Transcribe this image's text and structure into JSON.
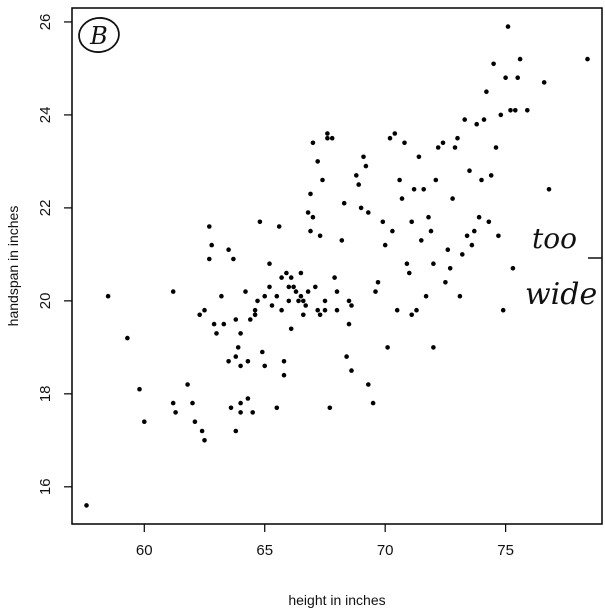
{
  "chart_data": {
    "type": "scatter",
    "title": "",
    "xlabel": "height in inches",
    "ylabel": "handspan in inches",
    "xlim": [
      57,
      79
    ],
    "ylim": [
      15.2,
      26.3
    ],
    "xticks": [
      "60",
      "65",
      "70",
      "75"
    ],
    "yticks": [
      "16",
      "18",
      "20",
      "22",
      "24",
      "26"
    ],
    "grid": false,
    "annotations": {
      "panel_letter": "B",
      "note_line1": "too",
      "note_line2": "wide"
    },
    "points": [
      [
        57.6,
        15.6
      ],
      [
        58.5,
        20.1
      ],
      [
        59.3,
        19.2
      ],
      [
        59.8,
        18.1
      ],
      [
        60.0,
        17.4
      ],
      [
        61.2,
        20.2
      ],
      [
        61.2,
        17.8
      ],
      [
        61.3,
        17.6
      ],
      [
        61.8,
        18.2
      ],
      [
        62.0,
        17.8
      ],
      [
        62.1,
        17.4
      ],
      [
        62.3,
        19.7
      ],
      [
        62.4,
        17.2
      ],
      [
        62.5,
        19.8
      ],
      [
        62.5,
        17.0
      ],
      [
        62.7,
        20.9
      ],
      [
        62.7,
        21.6
      ],
      [
        62.8,
        21.2
      ],
      [
        62.9,
        19.5
      ],
      [
        63.0,
        19.3
      ],
      [
        63.2,
        20.1
      ],
      [
        63.3,
        19.5
      ],
      [
        63.5,
        21.1
      ],
      [
        63.5,
        18.7
      ],
      [
        63.6,
        17.7
      ],
      [
        63.7,
        20.9
      ],
      [
        63.8,
        19.6
      ],
      [
        63.8,
        18.8
      ],
      [
        63.9,
        19.0
      ],
      [
        63.8,
        17.2
      ],
      [
        64.0,
        19.3
      ],
      [
        64.0,
        18.6
      ],
      [
        64.0,
        17.8
      ],
      [
        64.0,
        17.6
      ],
      [
        64.2,
        20.2
      ],
      [
        64.3,
        17.9
      ],
      [
        64.3,
        18.7
      ],
      [
        64.4,
        19.6
      ],
      [
        64.5,
        17.6
      ],
      [
        64.6,
        19.7
      ],
      [
        64.6,
        19.8
      ],
      [
        64.7,
        20.0
      ],
      [
        64.8,
        21.7
      ],
      [
        64.9,
        18.9
      ],
      [
        65.0,
        18.6
      ],
      [
        65.0,
        20.1
      ],
      [
        65.2,
        20.8
      ],
      [
        65.2,
        20.3
      ],
      [
        65.3,
        19.9
      ],
      [
        65.5,
        20.1
      ],
      [
        65.5,
        17.7
      ],
      [
        65.6,
        21.6
      ],
      [
        65.7,
        20.5
      ],
      [
        65.7,
        19.8
      ],
      [
        65.8,
        18.7
      ],
      [
        65.8,
        18.4
      ],
      [
        65.9,
        20.6
      ],
      [
        66.0,
        20.3
      ],
      [
        66.0,
        20.0
      ],
      [
        66.1,
        20.5
      ],
      [
        66.1,
        19.4
      ],
      [
        66.2,
        20.3
      ],
      [
        66.3,
        20.2
      ],
      [
        66.4,
        20.0
      ],
      [
        66.5,
        20.1
      ],
      [
        66.5,
        20.6
      ],
      [
        66.6,
        19.7
      ],
      [
        66.6,
        20.0
      ],
      [
        66.7,
        19.9
      ],
      [
        66.8,
        20.2
      ],
      [
        66.8,
        21.9
      ],
      [
        66.9,
        22.3
      ],
      [
        66.9,
        21.5
      ],
      [
        67.0,
        23.4
      ],
      [
        67.0,
        21.8
      ],
      [
        67.1,
        20.3
      ],
      [
        67.2,
        23.0
      ],
      [
        67.2,
        19.8
      ],
      [
        67.3,
        19.7
      ],
      [
        67.3,
        21.4
      ],
      [
        67.4,
        22.6
      ],
      [
        67.5,
        20.0
      ],
      [
        67.5,
        19.8
      ],
      [
        67.6,
        23.6
      ],
      [
        67.6,
        23.5
      ],
      [
        67.7,
        17.7
      ],
      [
        67.8,
        23.5
      ],
      [
        67.9,
        20.5
      ],
      [
        68.0,
        20.2
      ],
      [
        68.0,
        19.8
      ],
      [
        68.2,
        21.3
      ],
      [
        68.3,
        22.1
      ],
      [
        68.4,
        18.8
      ],
      [
        68.5,
        19.5
      ],
      [
        68.5,
        20.0
      ],
      [
        68.6,
        18.5
      ],
      [
        68.6,
        19.9
      ],
      [
        68.8,
        22.7
      ],
      [
        68.9,
        22.5
      ],
      [
        69.0,
        22.0
      ],
      [
        69.1,
        23.1
      ],
      [
        69.2,
        22.9
      ],
      [
        69.3,
        21.9
      ],
      [
        69.3,
        18.2
      ],
      [
        69.5,
        17.8
      ],
      [
        69.6,
        20.2
      ],
      [
        69.7,
        20.4
      ],
      [
        69.9,
        21.7
      ],
      [
        70.0,
        21.2
      ],
      [
        70.1,
        19.0
      ],
      [
        70.2,
        23.5
      ],
      [
        70.3,
        21.5
      ],
      [
        70.4,
        23.6
      ],
      [
        70.5,
        19.8
      ],
      [
        70.6,
        22.6
      ],
      [
        70.7,
        22.2
      ],
      [
        70.8,
        23.4
      ],
      [
        70.9,
        20.8
      ],
      [
        71.0,
        20.6
      ],
      [
        71.1,
        21.7
      ],
      [
        71.1,
        19.7
      ],
      [
        71.2,
        22.4
      ],
      [
        71.3,
        19.8
      ],
      [
        71.4,
        23.1
      ],
      [
        71.5,
        21.3
      ],
      [
        71.6,
        22.4
      ],
      [
        71.7,
        20.1
      ],
      [
        71.8,
        21.8
      ],
      [
        71.9,
        21.5
      ],
      [
        72.0,
        20.8
      ],
      [
        72.0,
        19.0
      ],
      [
        72.1,
        22.6
      ],
      [
        72.2,
        23.3
      ],
      [
        72.4,
        23.4
      ],
      [
        72.5,
        20.4
      ],
      [
        72.6,
        21.1
      ],
      [
        72.7,
        20.7
      ],
      [
        72.8,
        22.2
      ],
      [
        72.9,
        23.3
      ],
      [
        73.0,
        23.5
      ],
      [
        73.1,
        20.1
      ],
      [
        73.2,
        21.0
      ],
      [
        73.3,
        23.9
      ],
      [
        73.4,
        21.4
      ],
      [
        73.5,
        22.8
      ],
      [
        73.6,
        21.2
      ],
      [
        73.7,
        21.5
      ],
      [
        73.8,
        23.8
      ],
      [
        73.9,
        21.8
      ],
      [
        74.0,
        22.6
      ],
      [
        74.1,
        23.9
      ],
      [
        74.2,
        24.5
      ],
      [
        74.3,
        21.7
      ],
      [
        74.4,
        22.7
      ],
      [
        74.5,
        25.1
      ],
      [
        74.6,
        23.3
      ],
      [
        74.7,
        21.4
      ],
      [
        74.8,
        24.0
      ],
      [
        74.9,
        19.8
      ],
      [
        75.0,
        24.8
      ],
      [
        75.1,
        25.9
      ],
      [
        75.2,
        24.1
      ],
      [
        75.3,
        20.7
      ],
      [
        75.4,
        24.1
      ],
      [
        75.5,
        24.8
      ],
      [
        75.6,
        25.2
      ],
      [
        75.9,
        24.1
      ],
      [
        76.6,
        24.7
      ],
      [
        76.8,
        22.4
      ],
      [
        78.4,
        25.2
      ]
    ]
  }
}
